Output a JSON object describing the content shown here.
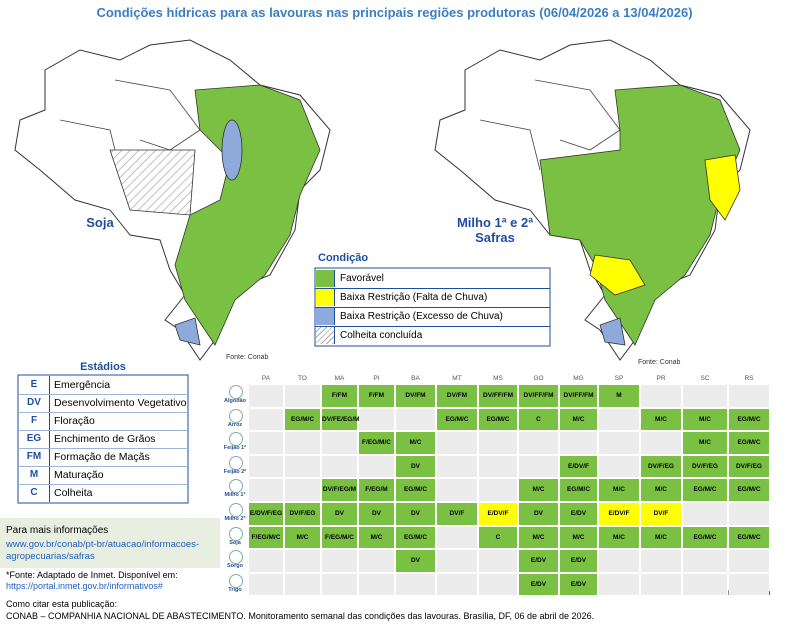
{
  "title": "Condições hídricas para as lavouras nas principais regiões produtoras (06/04/2026 a 13/04/2026)",
  "maps": [
    {
      "label": "Soja",
      "source": "Fonte: Conab"
    },
    {
      "label": "Milho 1ª e 2ª Safras",
      "source": "Fonte: Conab"
    }
  ],
  "legend": {
    "title": "Condição",
    "items": [
      {
        "label": "Favorável",
        "color": "#7ac143"
      },
      {
        "label": "Baixa Restrição (Falta de Chuva)",
        "color": "#ffff00"
      },
      {
        "label": "Baixa Restrição (Excesso de Chuva)",
        "color": "#8eaadb"
      },
      {
        "label": "Colheita concluída",
        "color": "hatch"
      }
    ]
  },
  "stages": {
    "title": "Estádios",
    "items": [
      [
        "E",
        "Emergência"
      ],
      [
        "DV",
        "Desenvolvimento Vegetativo"
      ],
      [
        "F",
        "Floração"
      ],
      [
        "EG",
        "Enchimento de Grãos"
      ],
      [
        "FM",
        "Formação de Maçãs"
      ],
      [
        "M",
        "Maturação"
      ],
      [
        "C",
        "Colheita"
      ]
    ]
  },
  "info": {
    "title": "Para mais informações",
    "links": [
      "www.gov.br/conab/pt-br/atuacao/informacoes-",
      "agropecuarias/safras"
    ]
  },
  "footnote": {
    "text": "*Fonte: Adaptado de Inmet. Disponível em:",
    "link": "https://portal.inmet.gov.br/informativos#"
  },
  "citation": {
    "title": "Como citar esta publicação:",
    "text": "CONAB – COMPANHIA NACIONAL DE ABASTECIMENTO. Monitoramento semanal das condições das lavouras. Brasília, DF, 06 de abril de 2026."
  },
  "grid": {
    "source": "Fonte: Conab",
    "states": [
      "PA",
      "TO",
      "MA",
      "PI",
      "BA",
      "MT",
      "MS",
      "GO",
      "MG",
      "SP",
      "PR",
      "SC",
      "RS"
    ],
    "rows": [
      {
        "crop": "Algodão",
        "cells": [
          null,
          null,
          {
            "text": "F/FM",
            "color": "#7ac143"
          },
          {
            "text": "F/FM",
            "color": "#7ac143"
          },
          {
            "text": "DV/FM",
            "color": "#7ac143"
          },
          {
            "text": "DV/FM",
            "color": "#7ac143"
          },
          {
            "text": "DV/FF/FM",
            "color": "#7ac143"
          },
          {
            "text": "DV/FF/FM",
            "color": "#7ac143"
          },
          {
            "text": "DV/FF/FM",
            "color": "#7ac143"
          },
          {
            "text": "M",
            "color": "#7ac143"
          },
          null,
          null,
          null
        ]
      },
      {
        "crop": "Arroz",
        "cells": [
          null,
          {
            "text": "EG/M/C",
            "color": "#7ac143"
          },
          {
            "text": "DV/FE/EG/M",
            "color": "#7ac143"
          },
          null,
          null,
          {
            "text": "EG/M/C",
            "color": "#7ac143"
          },
          {
            "text": "EG/M/C",
            "color": "#7ac143"
          },
          {
            "text": "C",
            "color": "#7ac143"
          },
          {
            "text": "M/C",
            "color": "#7ac143"
          },
          null,
          {
            "text": "M/C",
            "color": "#7ac143"
          },
          {
            "text": "M/C",
            "color": "#7ac143"
          },
          {
            "text": "EG/M/C",
            "color": "#7ac143"
          }
        ]
      },
      {
        "crop": "Feijão 1ª",
        "cells": [
          null,
          null,
          null,
          {
            "text": "F/EG/M/C",
            "color": "#7ac143"
          },
          {
            "text": "M/C",
            "color": "#7ac143"
          },
          null,
          null,
          null,
          null,
          null,
          null,
          {
            "text": "M/C",
            "color": "#7ac143"
          },
          {
            "text": "EG/M/C",
            "color": "#7ac143"
          }
        ]
      },
      {
        "crop": "Feijão 2ª",
        "cells": [
          null,
          null,
          null,
          null,
          {
            "text": "DV",
            "color": "#7ac143"
          },
          null,
          null,
          null,
          {
            "text": "E/DV/F",
            "color": "#7ac143"
          },
          null,
          {
            "text": "DV/F/EG",
            "color": "#7ac143"
          },
          {
            "text": "DV/F/EG",
            "color": "#7ac143"
          },
          {
            "text": "DV/F/EG",
            "color": "#7ac143"
          }
        ]
      },
      {
        "crop": "Milho 1ª",
        "cells": [
          null,
          null,
          {
            "text": "DV/F/EG/M",
            "color": "#7ac143"
          },
          {
            "text": "F/EG/M",
            "color": "#7ac143"
          },
          {
            "text": "EG/M/C",
            "color": "#7ac143"
          },
          null,
          null,
          {
            "text": "M/C",
            "color": "#7ac143"
          },
          {
            "text": "EG/M/C",
            "color": "#7ac143"
          },
          {
            "text": "M/C",
            "color": "#7ac143"
          },
          {
            "text": "M/C",
            "color": "#7ac143"
          },
          {
            "text": "EG/M/C",
            "color": "#7ac143"
          },
          {
            "text": "EG/M/C",
            "color": "#7ac143"
          }
        ]
      },
      {
        "crop": "Milho 2ª",
        "cells": [
          {
            "text": "E/DV/F/EG",
            "color": "#7ac143"
          },
          {
            "text": "DV/F/EG",
            "color": "#7ac143"
          },
          {
            "text": "DV",
            "color": "#7ac143"
          },
          {
            "text": "DV",
            "color": "#7ac143"
          },
          {
            "text": "DV",
            "color": "#7ac143"
          },
          {
            "text": "DV/F",
            "color": "#7ac143"
          },
          {
            "text": "E/DV/F",
            "color": "#ffff00"
          },
          {
            "text": "DV",
            "color": "#7ac143"
          },
          {
            "text": "E/DV",
            "color": "#7ac143"
          },
          {
            "text": "E/DV/F",
            "color": "#ffff00"
          },
          {
            "text": "DV/F",
            "color": "#ffff00"
          },
          null,
          null
        ]
      },
      {
        "crop": "Soja",
        "cells": [
          {
            "text": "F/EG/M/C",
            "color": "#7ac143"
          },
          {
            "text": "M/C",
            "color": "#7ac143"
          },
          {
            "text": "F/EG/M/C",
            "color": "#7ac143"
          },
          {
            "text": "M/C",
            "color": "#7ac143"
          },
          {
            "text": "EG/M/C",
            "color": "#7ac143"
          },
          null,
          {
            "text": "C",
            "color": "#7ac143"
          },
          {
            "text": "M/C",
            "color": "#7ac143"
          },
          {
            "text": "M/C",
            "color": "#7ac143"
          },
          {
            "text": "M/C",
            "color": "#7ac143"
          },
          {
            "text": "M/C",
            "color": "#7ac143"
          },
          {
            "text": "EG/M/C",
            "color": "#7ac143"
          },
          {
            "text": "EG/M/C",
            "color": "#7ac143"
          }
        ]
      },
      {
        "crop": "Sorgo",
        "cells": [
          null,
          null,
          null,
          null,
          {
            "text": "DV",
            "color": "#7ac143"
          },
          null,
          null,
          {
            "text": "E/DV",
            "color": "#7ac143"
          },
          {
            "text": "E/DV",
            "color": "#7ac143"
          },
          null,
          null,
          null,
          null
        ]
      },
      {
        "crop": "Trigo",
        "cells": [
          null,
          null,
          null,
          null,
          null,
          null,
          null,
          {
            "text": "E/DV",
            "color": "#7ac143"
          },
          {
            "text": "E/DV",
            "color": "#7ac143"
          },
          null,
          null,
          null,
          null
        ]
      }
    ]
  }
}
